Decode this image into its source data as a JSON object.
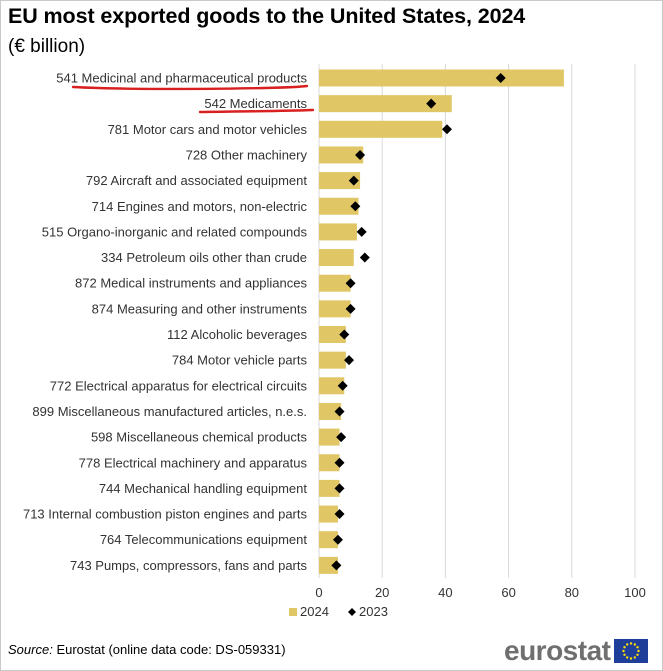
{
  "title": "EU most exported goods to the United States, 2024",
  "subtitle": "(€ billion)",
  "source_label": "Source:",
  "source_text": "Eurostat (online data code: DS-059331)",
  "logo_text": "eurostat",
  "colors": {
    "bar_2024": "#e0c664",
    "marker_2023": "#000000",
    "underline": "#d92020",
    "grid": "#d9d9d9",
    "eu_blue": "#1f3e9a",
    "eu_star": "#ffdd00"
  },
  "chart_data": {
    "type": "bar",
    "orientation": "horizontal",
    "title": "EU most exported goods to the United States, 2024",
    "unit": "€ billion",
    "categories": [
      "541 Medicinal and pharmaceutical products",
      "542 Medicaments",
      "781 Motor cars and motor vehicles",
      "728 Other machinery",
      "792 Aircraft and associated equipment",
      "714 Engines and motors, non-electric",
      "515 Organo-inorganic and related compounds",
      "334 Petroleum oils other than crude",
      "872 Medical instruments and appliances",
      "874 Measuring and other instruments",
      "112 Alcoholic beverages",
      "784 Motor vehicle parts",
      "772 Electrical apparatus for electrical circuits",
      "899 Miscellaneous manufactured articles, n.e.s.",
      "598 Miscellaneous chemical products",
      "778 Electrical machinery and apparatus",
      "744 Mechanical handling equipment",
      "713 Internal combustion piston engines and parts",
      "764 Telecommunications equipment",
      "743 Pumps, compressors, fans and parts"
    ],
    "series": [
      {
        "name": "2024",
        "kind": "bar",
        "values": [
          77.5,
          42.0,
          39.0,
          14.0,
          13.0,
          12.5,
          12.0,
          11.0,
          10.0,
          10.0,
          8.5,
          8.5,
          8.0,
          7.0,
          6.5,
          6.5,
          6.5,
          6.0,
          6.0,
          6.0
        ]
      },
      {
        "name": "2023",
        "kind": "marker",
        "values": [
          57.5,
          35.5,
          40.5,
          13.0,
          11.0,
          11.5,
          13.5,
          14.5,
          10.0,
          10.0,
          8.0,
          9.5,
          7.5,
          6.5,
          7.0,
          6.5,
          6.5,
          6.5,
          6.0,
          5.5
        ]
      }
    ],
    "xlim": [
      0,
      100
    ],
    "xticks": [
      "0",
      "20",
      "40",
      "60",
      "80",
      "100"
    ],
    "grid": true,
    "legend_position": "bottom",
    "highlighted_categories": [
      "541 Medicinal and pharmaceutical products",
      "542 Medicaments"
    ]
  }
}
